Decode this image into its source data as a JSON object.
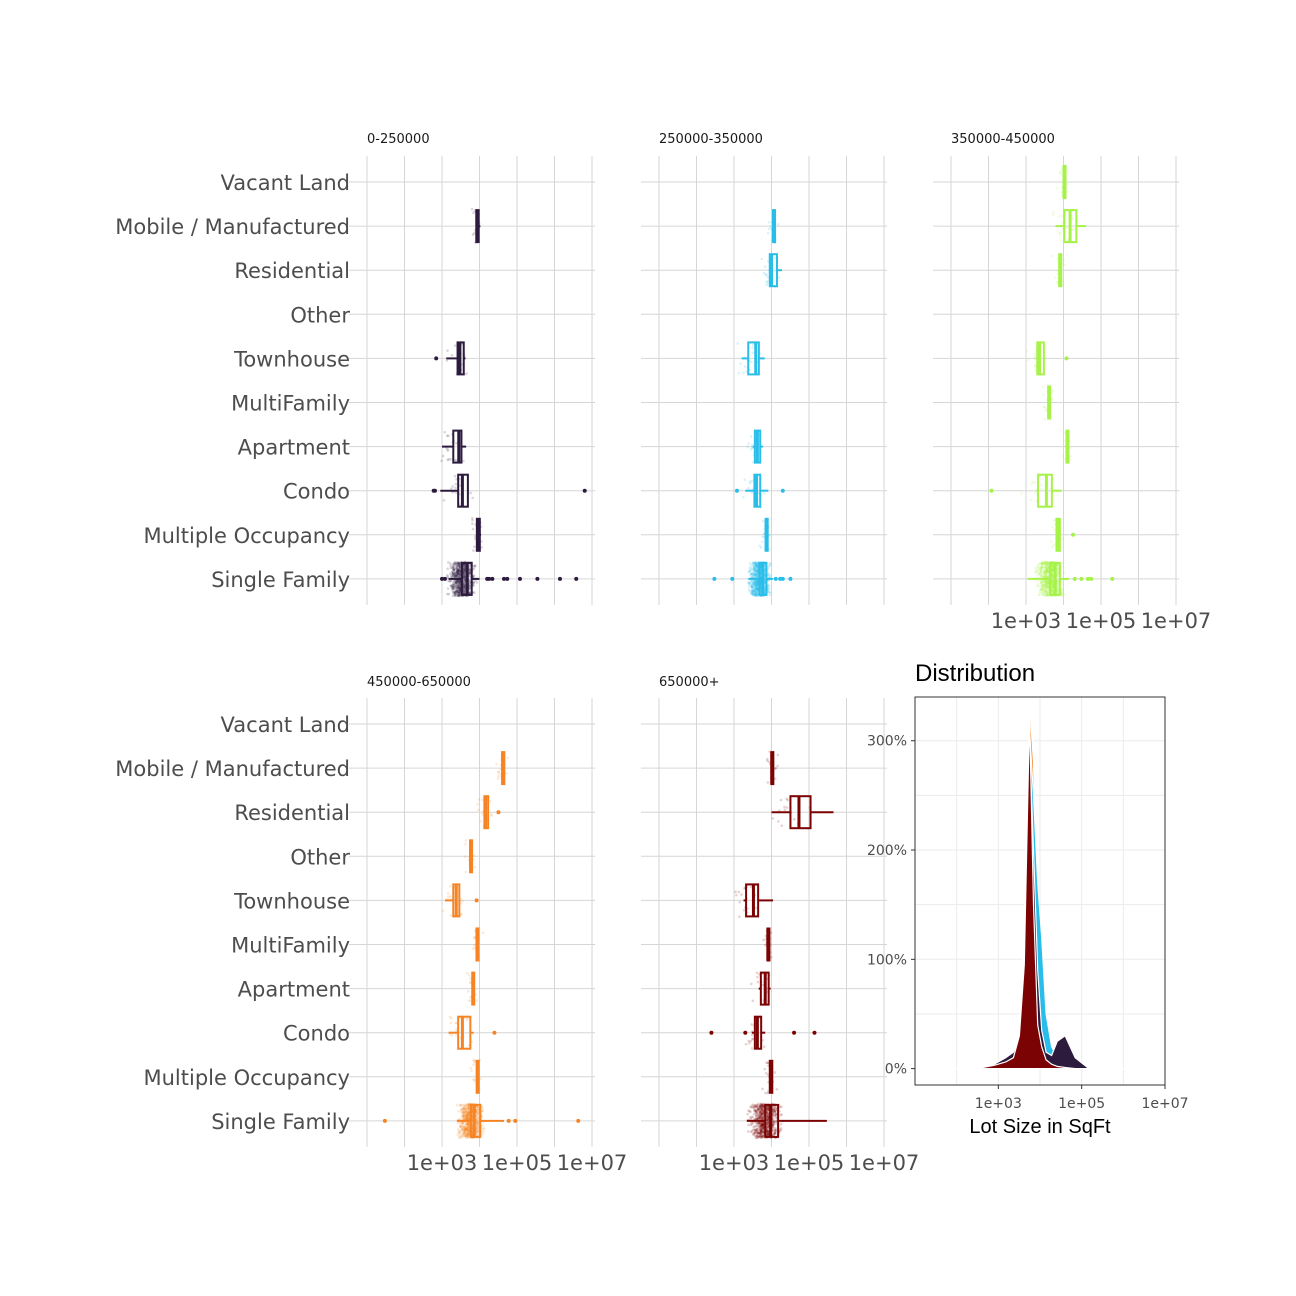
{
  "chart_data": [
    {
      "type": "boxplot",
      "orientation": "horizontal",
      "x_scale": "log10",
      "xlim": [
        10,
        10000000
      ],
      "x_ticks": [
        1000,
        100000,
        10000000
      ],
      "x_tick_labels": [
        "1e+03",
        "1e+05",
        "1e+07"
      ],
      "categories": [
        "Vacant Land",
        "Mobile / Manufactured",
        "Residential",
        "Other",
        "Townhouse",
        "MultiFamily",
        "Apartment",
        "Condo",
        "Multiple Occupancy",
        "Single Family"
      ],
      "panels": [
        {
          "title": "0-250000",
          "color": "#2d1b3e",
          "x_axis_shown": false,
          "boxes": [
            {
              "category": "Mobile / Manufactured",
              "whisker_low": 7900,
              "q1": 8200,
              "median": 8600,
              "q3": 9500,
              "whisker_high": 10500,
              "outliers": []
            },
            {
              "category": "Townhouse",
              "whisker_low": 1300,
              "q1": 2600,
              "median": 3000,
              "q3": 3800,
              "whisker_high": 4200,
              "outliers": [
                700
              ]
            },
            {
              "category": "Apartment",
              "whisker_low": 1000,
              "q1": 2000,
              "median": 2800,
              "q3": 3300,
              "whisker_high": 4400,
              "outliers": []
            },
            {
              "category": "Condo",
              "whisker_low": 900,
              "q1": 2700,
              "median": 3500,
              "q3": 4900,
              "whisker_high": 5200,
              "outliers": [
                600,
                650,
                6400000
              ]
            },
            {
              "category": "Multiple Occupancy",
              "whisker_low": 8200,
              "q1": 8500,
              "median": 8900,
              "q3": 10200,
              "whisker_high": 11000,
              "outliers": []
            },
            {
              "category": "Single Family",
              "whisker_low": 1500,
              "q1": 3400,
              "median": 4700,
              "q3": 6200,
              "whisker_high": 10000,
              "outliers": [
                1000,
                1200,
                16000,
                18000,
                22000,
                45000,
                55000,
                120000,
                350000,
                1400000,
                3800000
              ]
            }
          ]
        },
        {
          "title": "250000-350000",
          "color": "#29bde9",
          "x_axis_shown": false,
          "boxes": [
            {
              "category": "Mobile / Manufactured",
              "whisker_low": 10800,
              "q1": 11000,
              "median": 11300,
              "q3": 12000,
              "whisker_high": 12500,
              "outliers": []
            },
            {
              "category": "Residential",
              "whisker_low": 8500,
              "q1": 9000,
              "median": 10000,
              "q3": 14000,
              "whisker_high": 19000,
              "outliers": []
            },
            {
              "category": "Townhouse",
              "whisker_low": 1600,
              "q1": 2400,
              "median": 3800,
              "q3": 4600,
              "whisker_high": 6600,
              "outliers": []
            },
            {
              "category": "Apartment",
              "whisker_low": 3200,
              "q1": 3600,
              "median": 4200,
              "q3": 5000,
              "whisker_high": 5900,
              "outliers": []
            },
            {
              "category": "Condo",
              "whisker_low": 2000,
              "q1": 3500,
              "median": 4000,
              "q3": 5000,
              "whisker_high": 8200,
              "outliers": [
                1200,
                20000
              ]
            },
            {
              "category": "Multiple Occupancy",
              "whisker_low": 6800,
              "q1": 7000,
              "median": 7200,
              "q3": 7600,
              "whisker_high": 7900,
              "outliers": []
            },
            {
              "category": "Single Family",
              "whisker_low": 2400,
              "q1": 4800,
              "median": 5900,
              "q3": 7300,
              "whisker_high": 11000,
              "outliers": [
                300,
                900,
                13000,
                17000,
                20000,
                32000
              ]
            }
          ]
        },
        {
          "title": "350000-450000",
          "color": "#a6f248",
          "x_axis_shown": true,
          "boxes": [
            {
              "category": "Vacant Land",
              "whisker_low": 9800,
              "q1": 10000,
              "median": 10500,
              "q3": 11200,
              "whisker_high": 11500,
              "outliers": []
            },
            {
              "category": "Mobile / Manufactured",
              "whisker_low": 6100,
              "q1": 10500,
              "median": 15000,
              "q3": 22000,
              "whisker_high": 40000,
              "outliers": []
            },
            {
              "category": "Residential",
              "whisker_low": 7500,
              "q1": 7700,
              "median": 8000,
              "q3": 8500,
              "whisker_high": 8700,
              "outliers": []
            },
            {
              "category": "Townhouse",
              "whisker_low": 1900,
              "q1": 2000,
              "median": 2300,
              "q3": 3000,
              "whisker_high": 3300,
              "outliers": [
                12000
              ]
            },
            {
              "category": "MultiFamily",
              "whisker_low": 3800,
              "q1": 3900,
              "median": 4100,
              "q3": 4400,
              "whisker_high": 4600,
              "outliers": []
            },
            {
              "category": "Apartment",
              "whisker_low": 11800,
              "q1": 12000,
              "median": 12400,
              "q3": 13000,
              "whisker_high": 13500,
              "outliers": []
            },
            {
              "category": "Condo",
              "whisker_low": 1900,
              "q1": 2100,
              "median": 3500,
              "q3": 4900,
              "whisker_high": 8900,
              "outliers": [
                120
              ]
            },
            {
              "category": "Multiple Occupancy",
              "whisker_low": 6300,
              "q1": 6500,
              "median": 7000,
              "q3": 8000,
              "whisker_high": 8500,
              "outliers": [
                18000
              ]
            },
            {
              "category": "Single Family",
              "whisker_low": 1100,
              "q1": 4400,
              "median": 6000,
              "q3": 8000,
              "whisker_high": 14000,
              "outliers": [
                20000,
                30000,
                45000,
                55000,
                200000
              ]
            }
          ]
        },
        {
          "title": "450000-650000",
          "color": "#f68424",
          "x_axis_shown": true,
          "boxes": [
            {
              "category": "Mobile / Manufactured",
              "whisker_low": 39000,
              "q1": 40000,
              "median": 42000,
              "q3": 46000,
              "whisker_high": 48000,
              "outliers": []
            },
            {
              "category": "Residential",
              "whisker_low": 13000,
              "q1": 13500,
              "median": 14500,
              "q3": 17000,
              "whisker_high": 18000,
              "outliers": [
                32000
              ]
            },
            {
              "category": "Other",
              "whisker_low": 5400,
              "q1": 5600,
              "median": 5800,
              "q3": 6200,
              "whisker_high": 6400,
              "outliers": []
            },
            {
              "category": "Townhouse",
              "whisker_low": 1200,
              "q1": 2000,
              "median": 2400,
              "q3": 2900,
              "whisker_high": 3100,
              "outliers": [
                8400
              ]
            },
            {
              "category": "MultiFamily",
              "whisker_low": 8200,
              "q1": 8300,
              "median": 8600,
              "q3": 9000,
              "whisker_high": 9200,
              "outliers": []
            },
            {
              "category": "Apartment",
              "whisker_low": 6100,
              "q1": 6400,
              "median": 6800,
              "q3": 7200,
              "whisker_high": 7600,
              "outliers": []
            },
            {
              "category": "Condo",
              "whisker_low": 1500,
              "q1": 2700,
              "median": 3500,
              "q3": 5700,
              "whisker_high": 7000,
              "outliers": [
                25000
              ]
            },
            {
              "category": "Multiple Occupancy",
              "whisker_low": 8200,
              "q1": 8400,
              "median": 8800,
              "q3": 9500,
              "whisker_high": 9800,
              "outliers": []
            },
            {
              "category": "Single Family",
              "whisker_low": 2500,
              "q1": 5900,
              "median": 7200,
              "q3": 10500,
              "whisker_high": 45000,
              "outliers": [
                30,
                60000,
                90000,
                4300000
              ]
            }
          ]
        },
        {
          "title": "650000+",
          "color": "#7b0303",
          "x_axis_shown": true,
          "boxes": [
            {
              "category": "Mobile / Manufactured",
              "whisker_low": 9800,
              "q1": 9900,
              "median": 10200,
              "q3": 10900,
              "whisker_high": 11000,
              "outliers": []
            },
            {
              "category": "Residential",
              "whisker_low": 10000,
              "q1": 32000,
              "median": 54000,
              "q3": 110000,
              "whisker_high": 450000,
              "outliers": []
            },
            {
              "category": "Townhouse",
              "whisker_low": 1800,
              "q1": 2100,
              "median": 3300,
              "q3": 4400,
              "whisker_high": 11000,
              "outliers": []
            },
            {
              "category": "MultiFamily",
              "whisker_low": 7600,
              "q1": 7800,
              "median": 8000,
              "q3": 8500,
              "whisker_high": 8800,
              "outliers": []
            },
            {
              "category": "Apartment",
              "whisker_low": 4600,
              "q1": 5200,
              "median": 6800,
              "q3": 8400,
              "whisker_high": 9500,
              "outliers": []
            },
            {
              "category": "Condo",
              "whisker_low": 3000,
              "q1": 3600,
              "median": 4200,
              "q3": 5300,
              "whisker_high": 6800,
              "outliers": [
                250,
                2000,
                40000,
                140000
              ]
            },
            {
              "category": "Multiple Occupancy",
              "whisker_low": 8800,
              "q1": 9000,
              "median": 9500,
              "q3": 10500,
              "whisker_high": 11000,
              "outliers": []
            },
            {
              "category": "Single Family",
              "whisker_low": 2200,
              "q1": 6800,
              "median": 9500,
              "q3": 15000,
              "whisker_high": 300000,
              "outliers": []
            }
          ]
        }
      ]
    },
    {
      "type": "area",
      "title": "Distribution",
      "xlabel": "Lot Size in SqFt",
      "x_scale": "log10",
      "xlim": [
        10,
        10000000
      ],
      "x_ticks": [
        1000,
        100000,
        10000000
      ],
      "x_tick_labels": [
        "1e+03",
        "1e+05",
        "1e+07"
      ],
      "ylim": [
        -15,
        340
      ],
      "y_ticks": [
        0,
        100,
        200,
        300
      ],
      "y_tick_labels": [
        "0%",
        "100%",
        "200%",
        "300%"
      ],
      "grid": true,
      "legend": "none",
      "series": [
        {
          "color": "#a6f248",
          "x": [
            10,
            300,
            800,
            1500,
            2300,
            3200,
            4200,
            5600,
            7000,
            8800,
            11000,
            14000,
            19000,
            26000,
            40000,
            70000,
            150000,
            10000000
          ],
          "values": [
            0,
            0,
            0.5,
            2,
            8,
            40,
            120,
            338,
            290,
            120,
            60,
            25,
            10,
            5,
            2,
            1,
            0,
            0
          ]
        },
        {
          "color": "#f68424",
          "x": [
            10,
            300,
            800,
            1500,
            2300,
            3200,
            4200,
            5600,
            7000,
            8800,
            11000,
            14000,
            19000,
            26000,
            40000,
            70000,
            150000,
            10000000
          ],
          "values": [
            0,
            0,
            1,
            3,
            9,
            35,
            110,
            334,
            280,
            150,
            80,
            35,
            15,
            8,
            4,
            1,
            0,
            0
          ]
        },
        {
          "color": "#29bde9",
          "x": [
            10,
            300,
            800,
            1500,
            2300,
            3200,
            4200,
            5600,
            7000,
            8800,
            11000,
            14000,
            19000,
            26000,
            40000,
            70000,
            150000,
            10000000
          ],
          "values": [
            0,
            0,
            1,
            4,
            10,
            30,
            100,
            310,
            250,
            170,
            120,
            50,
            20,
            10,
            4,
            1,
            0,
            0
          ]
        },
        {
          "color": "#2d1b3e",
          "x": [
            10,
            300,
            800,
            1500,
            2300,
            3200,
            4200,
            5600,
            7000,
            8800,
            11000,
            14000,
            19000,
            26000,
            40000,
            70000,
            150000,
            10000000
          ],
          "values": [
            0,
            0,
            4,
            10,
            15,
            28,
            90,
            300,
            200,
            90,
            35,
            15,
            12,
            25,
            30,
            10,
            0,
            0
          ]
        },
        {
          "color": "#7b0303",
          "x": [
            10,
            300,
            800,
            1500,
            2300,
            3200,
            4200,
            5600,
            7000,
            8800,
            11000,
            14000,
            19000,
            26000,
            40000,
            70000,
            150000,
            10000000
          ],
          "values": [
            0,
            0,
            3,
            6,
            10,
            30,
            95,
            322,
            150,
            40,
            20,
            8,
            4,
            2,
            1,
            0,
            0,
            0
          ]
        }
      ]
    }
  ]
}
